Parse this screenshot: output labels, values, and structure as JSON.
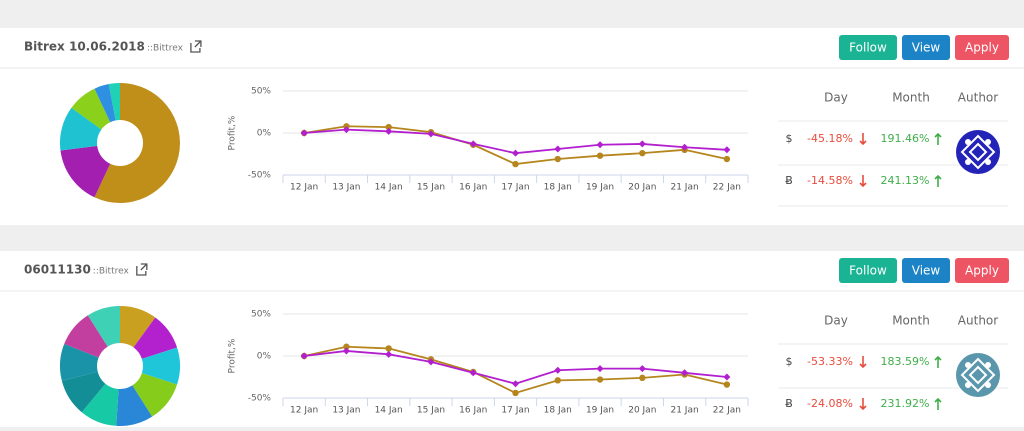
{
  "cards": [
    {
      "title": "Bitrex 10.06.2018",
      "exchange": "::Bittrex",
      "buttons": [
        "Follow",
        "View",
        "Apply"
      ],
      "allocation_chart": {
        "type": "pie",
        "values": [
          57,
          16,
          12,
          8,
          4,
          3
        ],
        "colors": [
          "#c08f1a",
          "#a21fb0",
          "#1ec2d0",
          "#8bd11c",
          "#2f8fe0",
          "#1fd1b5"
        ]
      },
      "profit_chart": {
        "type": "line",
        "y_label": "Profit,%",
        "categories": [
          "12 Jan",
          "13 Jan",
          "14 Jan",
          "15 Jan",
          "16 Jan",
          "17 Jan",
          "18 Jan",
          "19 Jan",
          "20 Jan",
          "21 Jan",
          "22 Jan"
        ],
        "series": [
          {
            "color": "#b5861e",
            "values": [
              0,
              8,
              7,
              1,
              -14,
              -37,
              -31,
              -27,
              -24,
              -20,
              -31
            ]
          },
          {
            "color": "#b21fcf",
            "values": [
              0,
              4,
              2,
              -1,
              -13,
              -24,
              -19,
              -14,
              -13,
              -17,
              -20
            ]
          }
        ],
        "ylim": [
          -50,
          50
        ],
        "yticks": [
          {
            "value": 50,
            "label": "50%"
          },
          {
            "value": 0,
            "label": "0%"
          },
          {
            "value": -50,
            "label": "-50%"
          }
        ],
        "grid": true
      },
      "stats": {
        "headers": [
          "Day",
          "Month",
          "Author"
        ],
        "rows": [
          [
            "$",
            "-45.18%",
            "191.46%"
          ],
          [
            "Ƀ",
            "-14.58%",
            "241.13%"
          ]
        ],
        "avatar_color": "#2323b8"
      }
    },
    {
      "title": "06011130",
      "exchange": "::Bittrex",
      "buttons": [
        "Follow",
        "View",
        "Apply"
      ],
      "allocation_chart": {
        "type": "pie",
        "values": [
          10,
          10,
          10,
          11,
          10,
          10,
          10,
          10,
          10,
          9
        ],
        "colors": [
          "#c9a020",
          "#b321cf",
          "#1fc5d8",
          "#86cc1a",
          "#2a86d6",
          "#18c9a6",
          "#138e96",
          "#1a93a8",
          "#c33f9f",
          "#3fd1b6"
        ]
      },
      "profit_chart": {
        "type": "line",
        "y_label": "Profit,%",
        "categories": [
          "12 Jan",
          "13 Jan",
          "14 Jan",
          "15 Jan",
          "16 Jan",
          "17 Jan",
          "18 Jan",
          "19 Jan",
          "20 Jan",
          "21 Jan",
          "22 Jan"
        ],
        "series": [
          {
            "color": "#b5861e",
            "values": [
              0,
              11,
              9,
              -4,
              -19,
              -44,
              -29,
              -28,
              -26,
              -22,
              -34
            ]
          },
          {
            "color": "#b21fcf",
            "values": [
              0,
              6,
              2,
              -7,
              -20,
              -33,
              -17,
              -15,
              -15,
              -20,
              -25
            ]
          }
        ],
        "ylim": [
          -50,
          50
        ],
        "yticks": [
          {
            "value": 50,
            "label": "50%"
          },
          {
            "value": 0,
            "label": "0%"
          },
          {
            "value": -50,
            "label": "-50%"
          }
        ],
        "grid": true
      },
      "stats": {
        "headers": [
          "Day",
          "Month",
          "Author"
        ],
        "rows": [
          [
            "$",
            "-53.33%",
            "183.59%"
          ],
          [
            "Ƀ",
            "-24.08%",
            "231.92%"
          ]
        ],
        "avatar_color": "#5a97ad"
      }
    }
  ]
}
